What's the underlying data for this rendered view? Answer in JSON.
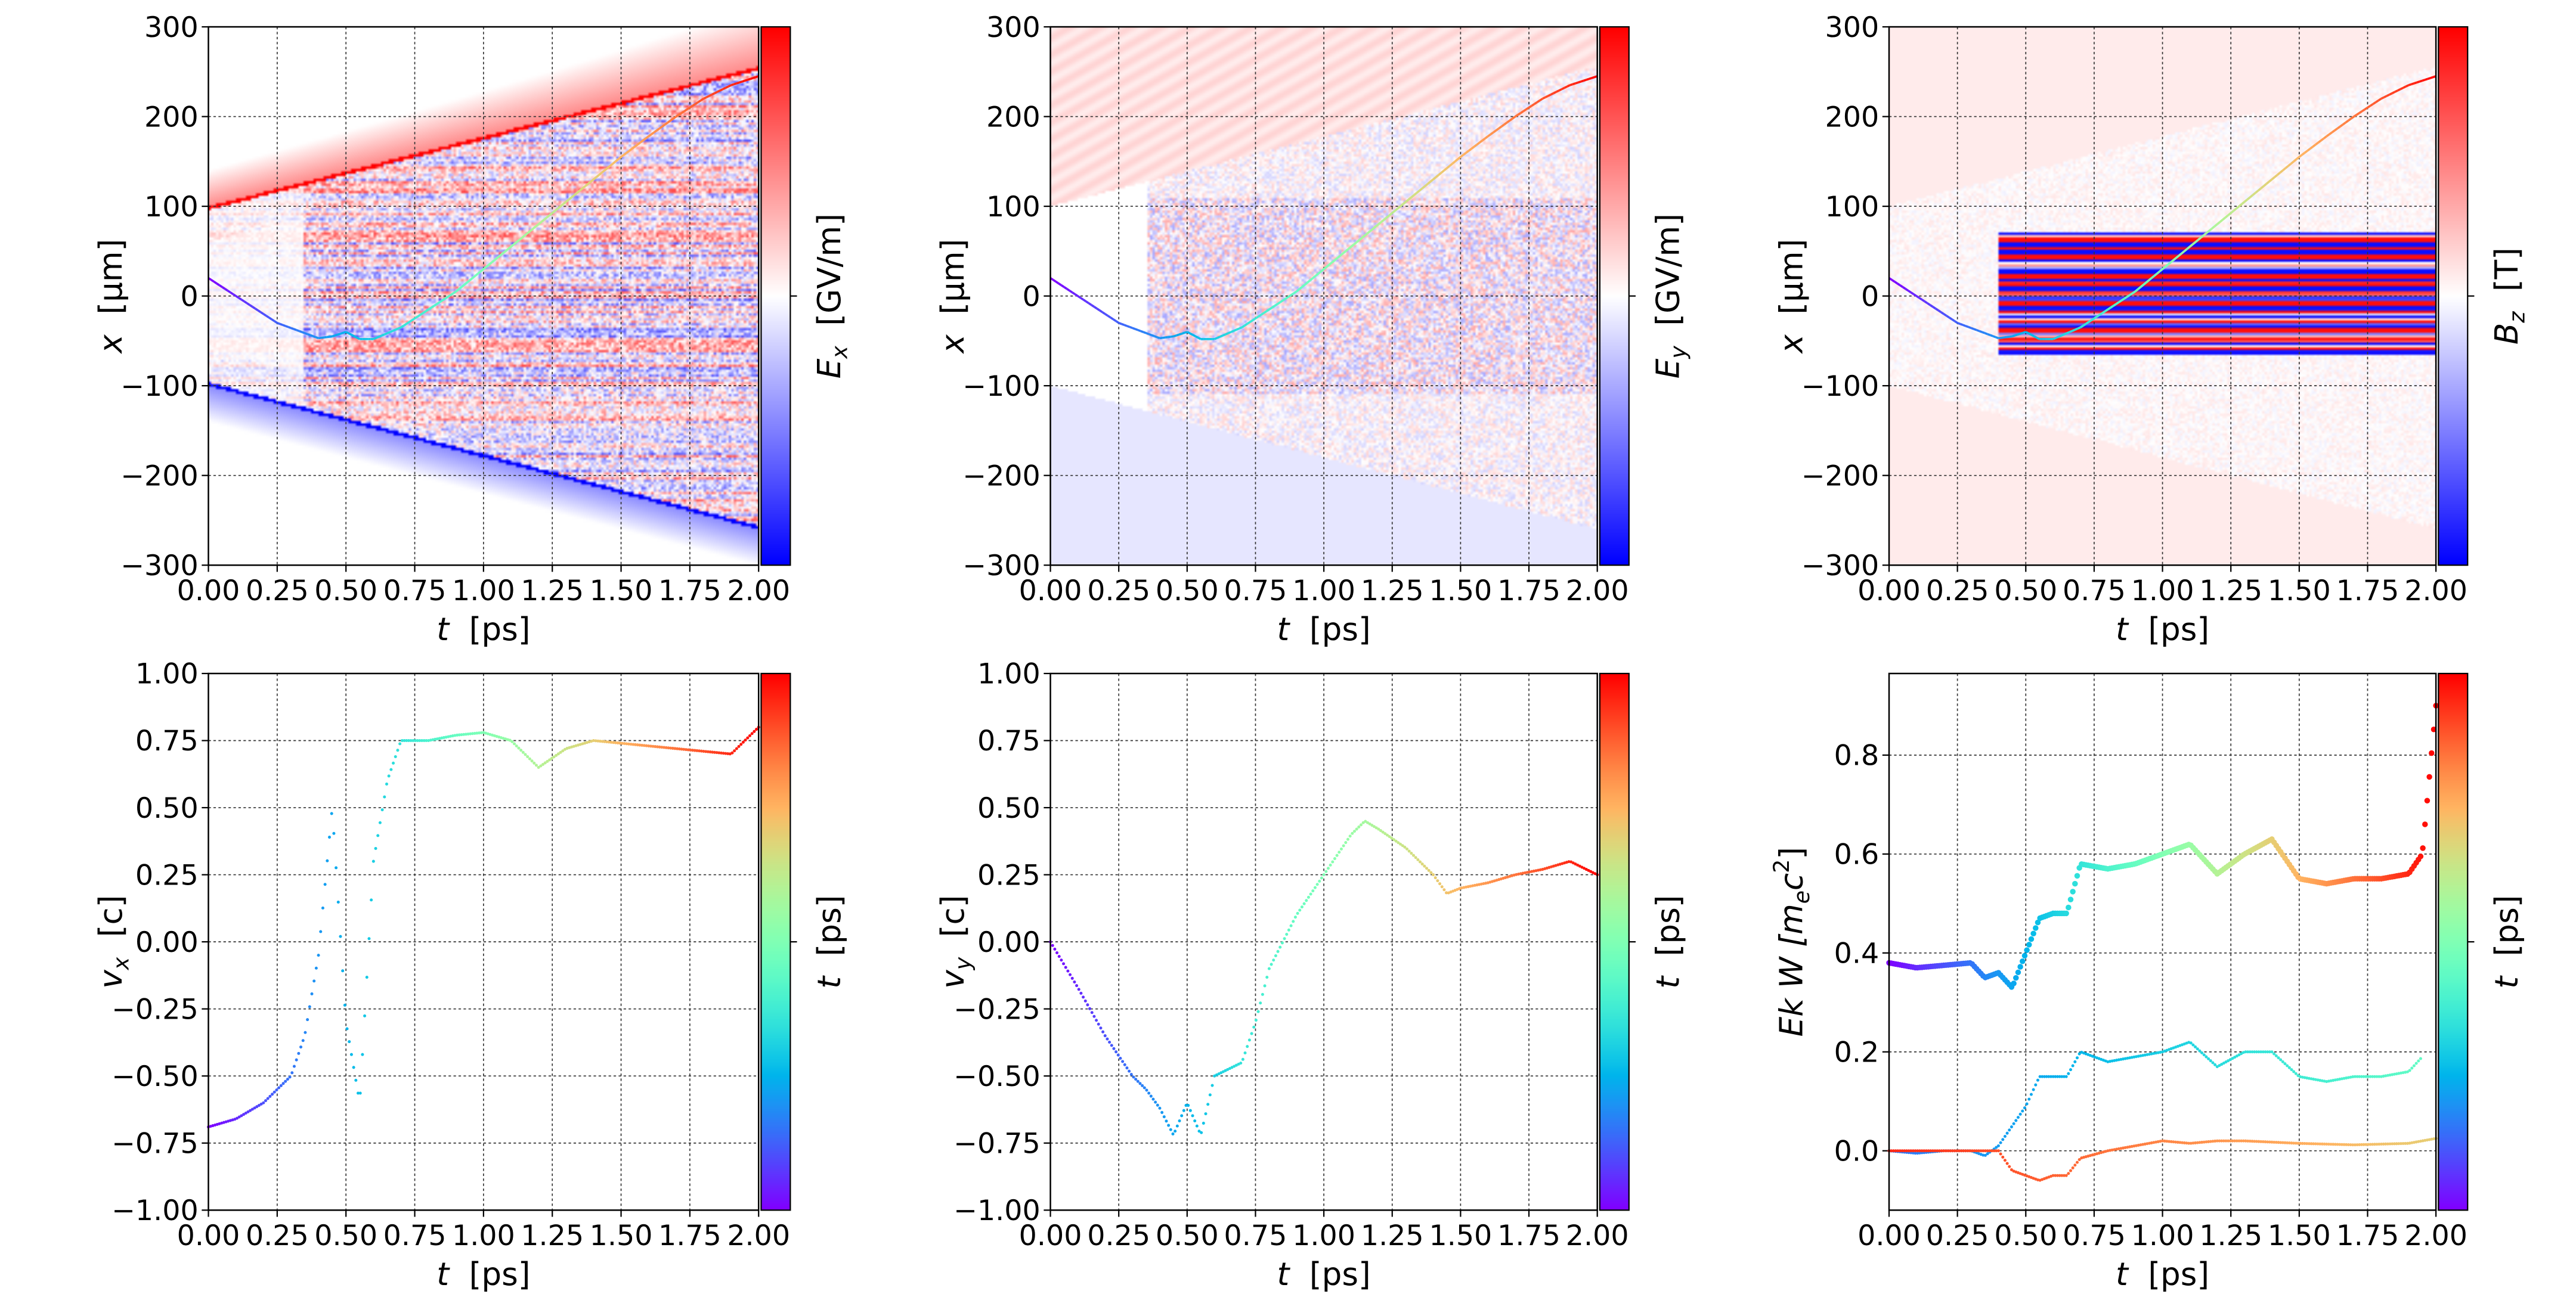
{
  "chart_data": [
    {
      "type": "heatmap",
      "panel": "top-left",
      "field": "Ex",
      "colormap": "bwr",
      "xlabel": {
        "sym": "t",
        "unit": "[ps]"
      },
      "ylabel": {
        "sym": "x",
        "unit": "[μm]"
      },
      "colorbar_label": {
        "sym": "E",
        "sub": "x",
        "unit": "[GV/m]"
      },
      "xlim": [
        0,
        2
      ],
      "ylim": [
        -300,
        300
      ],
      "xticks": [
        "0.00",
        "0.25",
        "0.50",
        "0.75",
        "1.00",
        "1.25",
        "1.50",
        "1.75",
        "2.00"
      ],
      "yticks": [
        "−300",
        "−200",
        "−100",
        "0",
        "100",
        "200",
        "300"
      ],
      "grid": true
    },
    {
      "type": "heatmap",
      "panel": "top-middle",
      "field": "Ey",
      "colormap": "bwr",
      "xlabel": {
        "sym": "t",
        "unit": "[ps]"
      },
      "ylabel": {
        "sym": "x",
        "unit": "[μm]"
      },
      "colorbar_label": {
        "sym": "E",
        "sub": "y",
        "unit": "[GV/m]"
      },
      "xlim": [
        0,
        2
      ],
      "ylim": [
        -300,
        300
      ],
      "xticks": [
        "0.00",
        "0.25",
        "0.50",
        "0.75",
        "1.00",
        "1.25",
        "1.50",
        "1.75",
        "2.00"
      ],
      "yticks": [
        "−300",
        "−200",
        "−100",
        "0",
        "100",
        "200",
        "300"
      ],
      "grid": true
    },
    {
      "type": "heatmap",
      "panel": "top-right",
      "field": "Bz",
      "colormap": "bwr",
      "xlabel": {
        "sym": "t",
        "unit": "[ps]"
      },
      "ylabel": {
        "sym": "x",
        "unit": "[μm]"
      },
      "colorbar_label": {
        "sym": "B",
        "sub": "z",
        "unit": "[T]"
      },
      "xlim": [
        0,
        2
      ],
      "ylim": [
        -300,
        300
      ],
      "xticks": [
        "0.00",
        "0.25",
        "0.50",
        "0.75",
        "1.00",
        "1.25",
        "1.50",
        "1.75",
        "2.00"
      ],
      "yticks": [
        "−300",
        "−200",
        "−100",
        "0",
        "100",
        "200",
        "300"
      ],
      "grid": true
    },
    {
      "type": "scatter",
      "panel": "bottom-left",
      "colormap": "rainbow",
      "xlabel": {
        "sym": "t",
        "unit": "[ps]"
      },
      "ylabel": {
        "sym": "v",
        "sub": "x",
        "unit": "[c]"
      },
      "colorbar_label": {
        "sym": "t",
        "unit": "[ps]"
      },
      "xlim": [
        0,
        2
      ],
      "ylim": [
        -1,
        1
      ],
      "xticks": [
        "0.00",
        "0.25",
        "0.50",
        "0.75",
        "1.00",
        "1.25",
        "1.50",
        "1.75",
        "2.00"
      ],
      "yticks": [
        "−1.00",
        "−0.75",
        "−0.50",
        "−0.25",
        "0.00",
        "0.25",
        "0.50",
        "0.75",
        "1.00"
      ],
      "grid": true,
      "series": [
        {
          "x": [
            0,
            0.1,
            0.2,
            0.3,
            0.35,
            0.4,
            0.45,
            0.5,
            0.55,
            0.6,
            0.65,
            0.7,
            0.8,
            0.9,
            1.0,
            1.1,
            1.2,
            1.3,
            1.4,
            1.5,
            1.6,
            1.7,
            1.8,
            1.9,
            2.0
          ],
          "y": [
            -0.69,
            -0.66,
            -0.6,
            -0.5,
            -0.35,
            -0.05,
            0.5,
            -0.3,
            -0.6,
            0.3,
            0.6,
            0.75,
            0.75,
            0.77,
            0.78,
            0.75,
            0.65,
            0.72,
            0.75,
            0.74,
            0.73,
            0.72,
            0.71,
            0.7,
            0.8
          ]
        }
      ]
    },
    {
      "type": "scatter",
      "panel": "bottom-middle",
      "colormap": "rainbow",
      "xlabel": {
        "sym": "t",
        "unit": "[ps]"
      },
      "ylabel": {
        "sym": "v",
        "sub": "y",
        "unit": "[c]"
      },
      "colorbar_label": {
        "sym": "t",
        "unit": "[ps]"
      },
      "xlim": [
        0,
        2
      ],
      "ylim": [
        -1,
        1
      ],
      "xticks": [
        "0.00",
        "0.25",
        "0.50",
        "0.75",
        "1.00",
        "1.25",
        "1.50",
        "1.75",
        "2.00"
      ],
      "yticks": [
        "−1.00",
        "−0.75",
        "−0.50",
        "−0.25",
        "0.00",
        "0.25",
        "0.50",
        "0.75",
        "1.00"
      ],
      "grid": true,
      "series": [
        {
          "x": [
            0,
            0.1,
            0.2,
            0.3,
            0.35,
            0.4,
            0.45,
            0.5,
            0.55,
            0.6,
            0.7,
            0.75,
            0.8,
            0.9,
            1.0,
            1.1,
            1.15,
            1.2,
            1.3,
            1.4,
            1.45,
            1.5,
            1.6,
            1.7,
            1.8,
            1.9,
            2.0
          ],
          "y": [
            0,
            -0.17,
            -0.35,
            -0.5,
            -0.55,
            -0.62,
            -0.72,
            -0.6,
            -0.72,
            -0.5,
            -0.45,
            -0.3,
            -0.1,
            0.1,
            0.25,
            0.4,
            0.45,
            0.42,
            0.35,
            0.25,
            0.18,
            0.2,
            0.22,
            0.25,
            0.27,
            0.3,
            0.25
          ]
        }
      ]
    },
    {
      "type": "scatter",
      "panel": "bottom-right",
      "colormap": "rainbow",
      "xlabel": {
        "sym": "t",
        "unit": "[ps]"
      },
      "ylabel": {
        "pre": "Ek W [m",
        "sub": "e",
        "mid": "c",
        "sup": "2",
        "post": "]"
      },
      "colorbar_label": {
        "sym": "t",
        "unit": "[ps]"
      },
      "xlim": [
        0,
        2
      ],
      "ylim": [
        -0.12,
        0.965
      ],
      "xticks": [
        "0.00",
        "0.25",
        "0.50",
        "0.75",
        "1.00",
        "1.25",
        "1.50",
        "1.75",
        "2.00"
      ],
      "yticks": [
        "0.0",
        "0.2",
        "0.4",
        "0.6",
        "0.8"
      ],
      "grid": true,
      "series": [
        {
          "color_range": [
            0,
            1
          ],
          "marker": "large",
          "x": [
            0,
            0.1,
            0.2,
            0.3,
            0.35,
            0.4,
            0.45,
            0.5,
            0.55,
            0.6,
            0.65,
            0.7,
            0.8,
            0.9,
            1.0,
            1.1,
            1.2,
            1.3,
            1.4,
            1.5,
            1.6,
            1.7,
            1.8,
            1.9,
            1.95,
            2.0
          ],
          "y": [
            0.38,
            0.37,
            0.375,
            0.38,
            0.35,
            0.36,
            0.33,
            0.4,
            0.47,
            0.48,
            0.48,
            0.58,
            0.57,
            0.58,
            0.6,
            0.62,
            0.56,
            0.6,
            0.63,
            0.55,
            0.54,
            0.55,
            0.55,
            0.56,
            0.6,
            0.9
          ]
        },
        {
          "color_range": [
            0.15,
            0.45
          ],
          "marker": "small",
          "x": [
            0,
            0.1,
            0.2,
            0.3,
            0.35,
            0.4,
            0.45,
            0.5,
            0.55,
            0.6,
            0.65,
            0.7,
            0.8,
            0.9,
            1.0,
            1.1,
            1.2,
            1.3,
            1.4,
            1.5,
            1.6,
            1.7,
            1.8,
            1.9,
            1.95
          ],
          "y": [
            0,
            -0.005,
            0,
            0,
            -0.01,
            0.01,
            0.05,
            0.09,
            0.15,
            0.15,
            0.15,
            0.2,
            0.18,
            0.19,
            0.2,
            0.22,
            0.17,
            0.2,
            0.2,
            0.15,
            0.14,
            0.15,
            0.15,
            0.16,
            0.19
          ]
        },
        {
          "color_range": [
            0.95,
            0.7
          ],
          "marker": "small",
          "x": [
            0,
            0.3,
            0.35,
            0.4,
            0.45,
            0.5,
            0.55,
            0.6,
            0.65,
            0.7,
            0.8,
            0.9,
            1.0,
            1.1,
            1.2,
            1.3,
            1.5,
            1.7,
            1.9,
            2.0
          ],
          "y": [
            0,
            0,
            0,
            0,
            -0.04,
            -0.05,
            -0.06,
            -0.05,
            -0.05,
            -0.015,
            0,
            0.01,
            0.02,
            0.015,
            0.02,
            0.02,
            0.015,
            0.012,
            0.015,
            0.025
          ]
        }
      ]
    }
  ],
  "trajectory": {
    "t": [
      0,
      0.1,
      0.25,
      0.4,
      0.45,
      0.5,
      0.55,
      0.6,
      0.7,
      0.8,
      0.9,
      1.0,
      1.1,
      1.2,
      1.3,
      1.4,
      1.5,
      1.6,
      1.7,
      1.8,
      1.9,
      2.0
    ],
    "x": [
      20,
      0,
      -30,
      -47,
      -45,
      -40,
      -48,
      -48,
      -35,
      -15,
      5,
      30,
      55,
      80,
      105,
      130,
      155,
      178,
      200,
      220,
      235,
      245
    ]
  },
  "colors": {
    "bwr_low": "#0000ff",
    "bwr_mid": "#ffffff",
    "bwr_high": "#ff0000"
  }
}
